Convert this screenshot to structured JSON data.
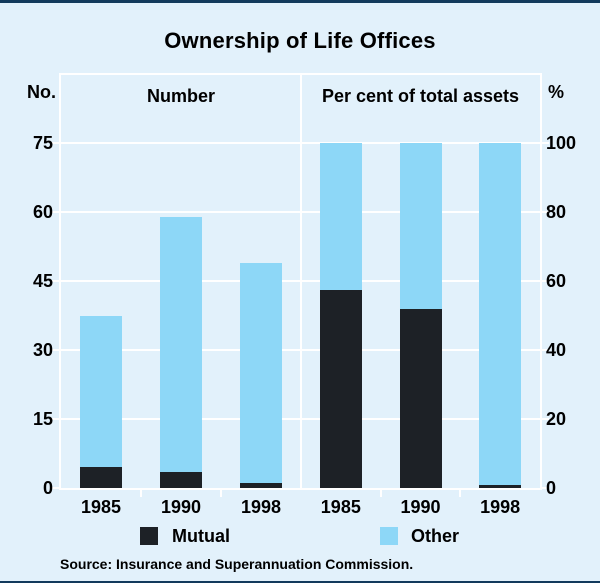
{
  "title": "Ownership of Life Offices",
  "source": "Source: Insurance and Superannuation Commission.",
  "colors": {
    "background": "#e2f1fb",
    "mutual": "#1d2126",
    "other": "#8dd7f7",
    "grid": "#ffffff",
    "rule": "#123a5c"
  },
  "legend": {
    "items": [
      {
        "label": "Mutual",
        "color": "#1d2126"
      },
      {
        "label": "Other",
        "color": "#8dd7f7"
      }
    ]
  },
  "chart_data": [
    {
      "type": "bar",
      "stacked": true,
      "title": "Number",
      "ylabel": "No.",
      "ylim": [
        0,
        75
      ],
      "yticks": [
        0,
        15,
        30,
        45,
        60,
        75
      ],
      "categories": [
        "1985",
        "1990",
        "1998"
      ],
      "series": [
        {
          "name": "Mutual",
          "values": [
            4.5,
            3.5,
            1
          ]
        },
        {
          "name": "Other",
          "values": [
            33,
            55.5,
            48
          ]
        }
      ],
      "totals": [
        37.5,
        59,
        49
      ],
      "grid": true,
      "legend_position": "bottom"
    },
    {
      "type": "bar",
      "stacked": true,
      "title": "Per cent of total assets",
      "ylabel": "%",
      "ylim": [
        0,
        100
      ],
      "yticks": [
        0,
        20,
        40,
        60,
        80,
        100
      ],
      "categories": [
        "1985",
        "1990",
        "1998"
      ],
      "series": [
        {
          "name": "Mutual",
          "values": [
            57.5,
            52,
            1
          ]
        },
        {
          "name": "Other",
          "values": [
            42.5,
            48,
            99
          ]
        }
      ],
      "totals": [
        100,
        100,
        100
      ],
      "grid": true,
      "legend_position": "bottom"
    }
  ]
}
